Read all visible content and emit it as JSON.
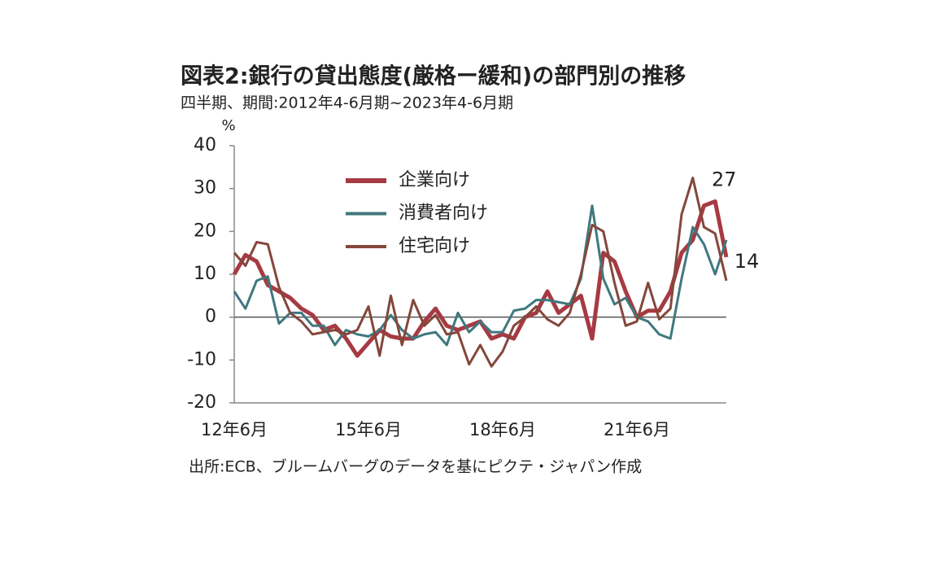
{
  "chart_data": {
    "type": "line",
    "title": "図表2:銀行の貸出態度(厳格ー緩和)の部門別の推移",
    "subtitle": "四半期、期間:2012年4-6月期~2023年4-6月期",
    "y_label": "%",
    "source": "出所:ECB、ブルームバーグのデータを基にピクテ・ジャパン作成",
    "categories": [
      "12年6月",
      null,
      null,
      null,
      null,
      null,
      null,
      null,
      null,
      null,
      null,
      null,
      "15年6月",
      null,
      null,
      null,
      null,
      null,
      null,
      null,
      null,
      null,
      null,
      null,
      "18年6月",
      null,
      null,
      null,
      null,
      null,
      null,
      null,
      null,
      null,
      null,
      null,
      "21年6月",
      null,
      null,
      null,
      null,
      null,
      null,
      null,
      null
    ],
    "ylim": [
      -20,
      40
    ],
    "yticks": [
      -20,
      -10,
      0,
      10,
      20,
      30,
      40
    ],
    "legend": "upper-center",
    "series": [
      {
        "name": "企業向け",
        "color": "#a63a42",
        "width": 5,
        "values": [
          10,
          14.5,
          13,
          7.5,
          6,
          4.5,
          2,
          0.5,
          -3,
          -2,
          -5,
          -9,
          -6,
          -3,
          -4.5,
          -5,
          -5,
          -1,
          2,
          -2,
          -3,
          -2,
          -1,
          -5,
          -4,
          -5,
          0,
          1,
          6,
          1,
          3,
          5,
          -5,
          15,
          13,
          6,
          0,
          1.5,
          1.5,
          6,
          15,
          18,
          26,
          27,
          14
        ],
        "value_labels": [
          null,
          null,
          null,
          null,
          null,
          null,
          null,
          null,
          null,
          null,
          null,
          null,
          null,
          null,
          null,
          null,
          null,
          null,
          null,
          null,
          null,
          null,
          null,
          null,
          null,
          null,
          null,
          null,
          null,
          null,
          null,
          null,
          null,
          null,
          null,
          null,
          null,
          null,
          null,
          null,
          null,
          null,
          null,
          "27",
          "14"
        ]
      },
      {
        "name": "消費者向け",
        "color": "#3f787e",
        "width": 3,
        "values": [
          6,
          2,
          8.5,
          9.5,
          -1.5,
          1,
          1,
          -2,
          -2,
          -6.5,
          -3,
          -4,
          -4.5,
          -3,
          0.5,
          -3,
          -5,
          -4,
          -3.5,
          -6.5,
          1,
          -3.5,
          -1,
          -3.5,
          -3.5,
          1.5,
          2,
          4,
          4,
          3.5,
          3,
          9,
          26,
          9,
          3,
          4.5,
          0,
          -1,
          -4,
          -5,
          9,
          21,
          17,
          10,
          18
        ]
      },
      {
        "name": "住宅向け",
        "color": "#84473b",
        "width": 3,
        "values": [
          15,
          12,
          17.5,
          17,
          7,
          1,
          -1,
          -4,
          -3.5,
          -3,
          -4,
          -3,
          2.5,
          -9,
          5,
          -6.5,
          4,
          -2,
          0.5,
          -4,
          -3.5,
          -11,
          -6.5,
          -11.5,
          -8,
          -2,
          0,
          2.5,
          -0.5,
          -2,
          1,
          10,
          21.5,
          20,
          8,
          -2,
          -1,
          8,
          -0.5,
          2,
          24,
          32.5,
          21,
          19.5,
          8.5
        ]
      }
    ]
  }
}
